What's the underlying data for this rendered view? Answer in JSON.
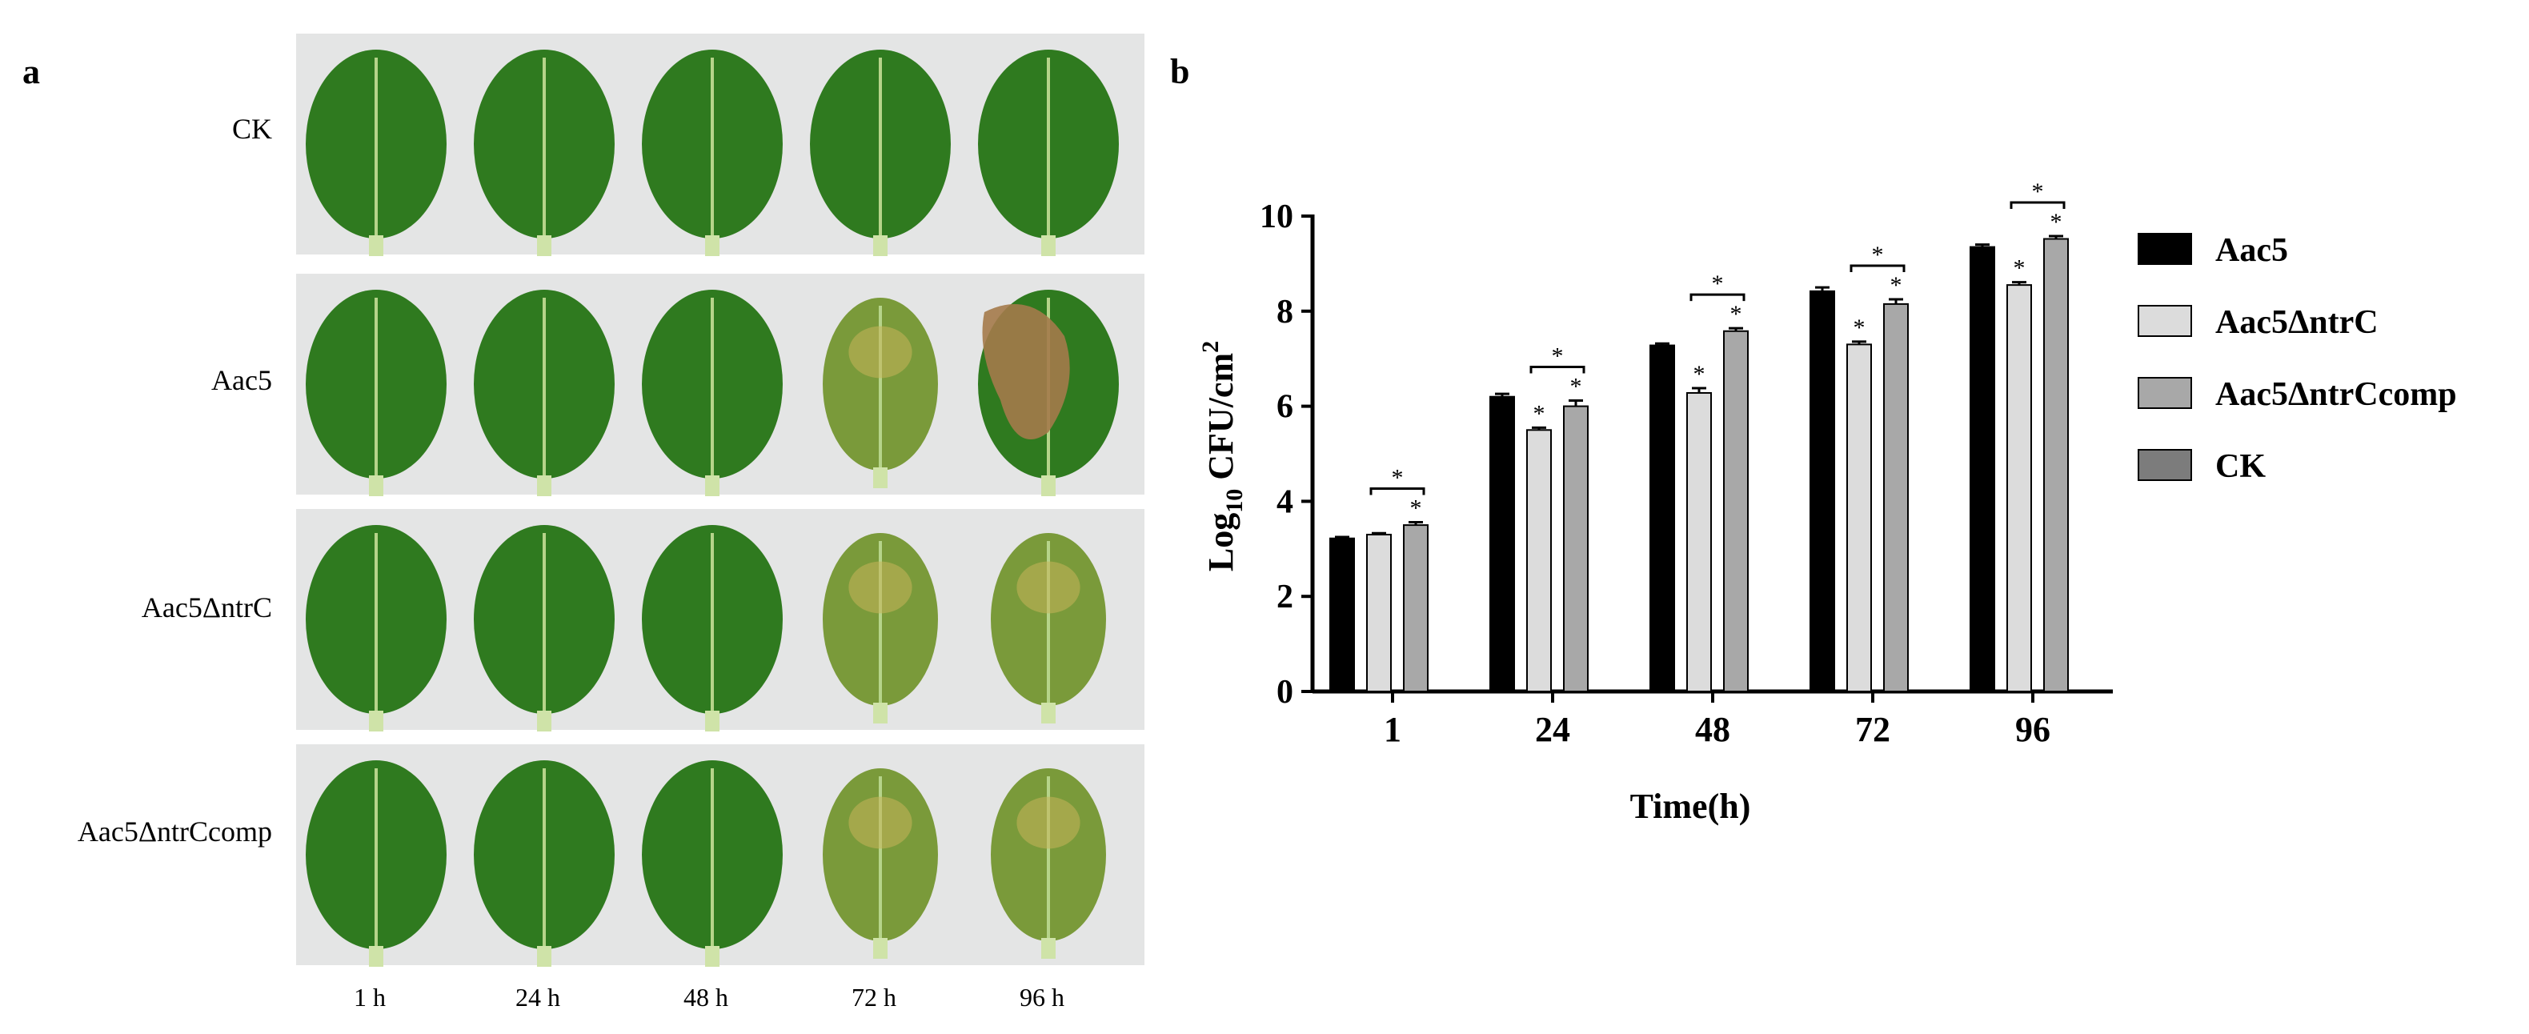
{
  "panel_a": {
    "letter": "a",
    "rows": [
      "CK",
      "Aac5",
      "Aac5ΔntrC",
      "Aac5ΔntrCcomp"
    ],
    "columns": [
      "1 h",
      "24 h",
      "48 h",
      "72 h",
      "96 h"
    ],
    "leaf_colors": {
      "healthy": "#2f7a1f",
      "chlorotic": "#7a9a3a",
      "necrotic": "#a47a4a",
      "background": "#e4e5e5"
    },
    "leaf_states": [
      [
        "healthy",
        "healthy",
        "healthy",
        "healthy",
        "healthy"
      ],
      [
        "healthy",
        "healthy",
        "healthy",
        "chlorotic",
        "necrotic"
      ],
      [
        "healthy",
        "healthy",
        "healthy",
        "chlorotic",
        "chlorotic"
      ],
      [
        "healthy",
        "healthy",
        "healthy",
        "chlorotic",
        "chlorotic"
      ]
    ]
  },
  "panel_b": {
    "letter": "b"
  },
  "chart_data": {
    "type": "bar",
    "categories": [
      "1",
      "24",
      "48",
      "72",
      "96"
    ],
    "series": [
      {
        "name": "Aac5",
        "values": [
          3.22,
          6.2,
          7.28,
          8.42,
          9.35
        ],
        "errors": [
          0.03,
          0.06,
          0.04,
          0.08,
          0.05
        ],
        "color": "#000000"
      },
      {
        "name": "Aac5ΔntrC",
        "values": [
          3.3,
          5.5,
          6.28,
          7.3,
          8.55
        ],
        "errors": [
          0.03,
          0.05,
          0.1,
          0.06,
          0.06
        ],
        "color": "#dcdcdc"
      },
      {
        "name": "Aac5ΔntrCcomp",
        "values": [
          3.5,
          6.0,
          7.58,
          8.15,
          9.52
        ],
        "errors": [
          0.06,
          0.12,
          0.06,
          0.1,
          0.06
        ],
        "color": "#a8a8a8"
      },
      {
        "name": "CK",
        "values": [
          0,
          0,
          0,
          0,
          0
        ],
        "errors": [
          0,
          0,
          0,
          0,
          0
        ],
        "color": "#7c7c7c"
      }
    ],
    "significance_marks": [
      {
        "category": "1",
        "series": "Aac5ΔntrCcomp",
        "label": "*"
      },
      {
        "category": "24",
        "series": "Aac5ΔntrC",
        "label": "*"
      },
      {
        "category": "24",
        "series": "Aac5ΔntrCcomp",
        "label": "*"
      },
      {
        "category": "48",
        "series": "Aac5ΔntrC",
        "label": "*"
      },
      {
        "category": "48",
        "series": "Aac5ΔntrCcomp",
        "label": "*"
      },
      {
        "category": "72",
        "series": "Aac5ΔntrC",
        "label": "*"
      },
      {
        "category": "72",
        "series": "Aac5ΔntrCcomp",
        "label": "*"
      },
      {
        "category": "96",
        "series": "Aac5ΔntrC",
        "label": "*"
      },
      {
        "category": "96",
        "series": "Aac5ΔntrCcomp",
        "label": "*"
      }
    ],
    "comparison_brackets": [
      {
        "category": "1",
        "label": "*"
      },
      {
        "category": "24",
        "label": "*"
      },
      {
        "category": "48",
        "label": "*"
      },
      {
        "category": "72",
        "label": "*"
      },
      {
        "category": "96",
        "label": "*"
      }
    ],
    "xlabel": "Time(h)",
    "ylabel": "Log10 CFU/cm2",
    "ylabel_parts": {
      "base": "Log",
      "sub": "10",
      "mid": " CFU/cm",
      "sup": "2"
    },
    "ylim": [
      0,
      10
    ],
    "yticks": [
      "0",
      "2",
      "4",
      "6",
      "8",
      "10"
    ],
    "legend_position": "right",
    "grid": false
  }
}
